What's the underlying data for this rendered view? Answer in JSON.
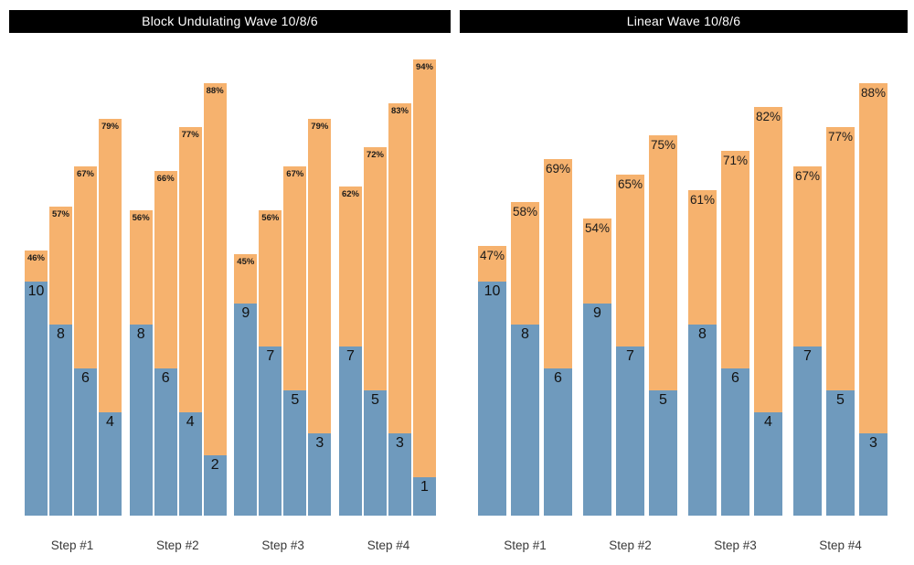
{
  "colors": {
    "bar_bottom": "#6f9abd",
    "bar_top": "#f6b26e",
    "title_bg": "#000000",
    "title_text": "#ffffff",
    "label_text": "#1a1a1a",
    "category_text": "#3a3a3a",
    "background": "#ffffff"
  },
  "pct_suffix": "%",
  "chart_data": [
    {
      "type": "bar",
      "title": "Block Undulating Wave 10/8/6",
      "subtype": "stacked-grouped",
      "legend_position": "none",
      "grid": false,
      "categories": [
        "Step #1",
        "Step #2",
        "Step #3",
        "Step #4"
      ],
      "groups": [
        {
          "category": "Step #1",
          "bars": [
            {
              "reps": 10,
              "pct": 46
            },
            {
              "reps": 8,
              "pct": 57
            },
            {
              "reps": 6,
              "pct": 67
            },
            {
              "reps": 4,
              "pct": 79
            }
          ]
        },
        {
          "category": "Step #2",
          "bars": [
            {
              "reps": 8,
              "pct": 56
            },
            {
              "reps": 6,
              "pct": 66
            },
            {
              "reps": 4,
              "pct": 77
            },
            {
              "reps": 2,
              "pct": 88
            }
          ]
        },
        {
          "category": "Step #3",
          "bars": [
            {
              "reps": 9,
              "pct": 45
            },
            {
              "reps": 7,
              "pct": 56
            },
            {
              "reps": 5,
              "pct": 67
            },
            {
              "reps": 3,
              "pct": 79
            }
          ]
        },
        {
          "category": "Step #4",
          "bars": [
            {
              "reps": 7,
              "pct": 62
            },
            {
              "reps": 5,
              "pct": 72
            },
            {
              "reps": 3,
              "pct": 83
            },
            {
              "reps": 1,
              "pct": 94
            }
          ]
        }
      ]
    },
    {
      "type": "bar",
      "title": "Linear Wave 10/8/6",
      "subtype": "stacked-grouped",
      "legend_position": "none",
      "grid": false,
      "categories": [
        "Step #1",
        "Step #2",
        "Step #3",
        "Step #4"
      ],
      "groups": [
        {
          "category": "Step #1",
          "bars": [
            {
              "reps": 10,
              "pct": 47
            },
            {
              "reps": 8,
              "pct": 58
            },
            {
              "reps": 6,
              "pct": 69
            }
          ]
        },
        {
          "category": "Step #2",
          "bars": [
            {
              "reps": 9,
              "pct": 54
            },
            {
              "reps": 7,
              "pct": 65
            },
            {
              "reps": 5,
              "pct": 75
            }
          ]
        },
        {
          "category": "Step #3",
          "bars": [
            {
              "reps": 8,
              "pct": 61
            },
            {
              "reps": 6,
              "pct": 71
            },
            {
              "reps": 4,
              "pct": 82
            }
          ]
        },
        {
          "category": "Step #4",
          "bars": [
            {
              "reps": 7,
              "pct": 67
            },
            {
              "reps": 5,
              "pct": 77
            },
            {
              "reps": 3,
              "pct": 88
            }
          ]
        }
      ]
    }
  ]
}
